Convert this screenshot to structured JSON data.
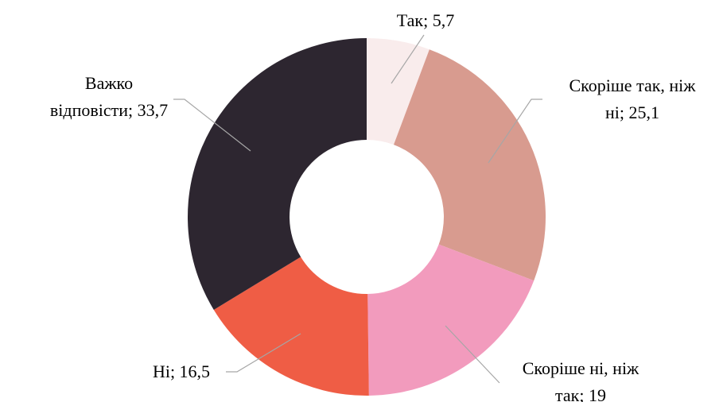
{
  "chart_data": {
    "type": "donut",
    "values": [
      5.7,
      25.1,
      19,
      16.5,
      33.7
    ],
    "value_labels": [
      "Так; 5,7",
      "Скоріше так, ніж\nні; 25,1",
      "Скоріше ні, ніж\nтак; 19",
      "Ні; 16,5",
      "Важко\nвідповісти; 33,7"
    ],
    "colors": [
      "#f9ecec",
      "#d89b8f",
      "#f29bbd",
      "#ef5d45",
      "#2d2630"
    ]
  }
}
